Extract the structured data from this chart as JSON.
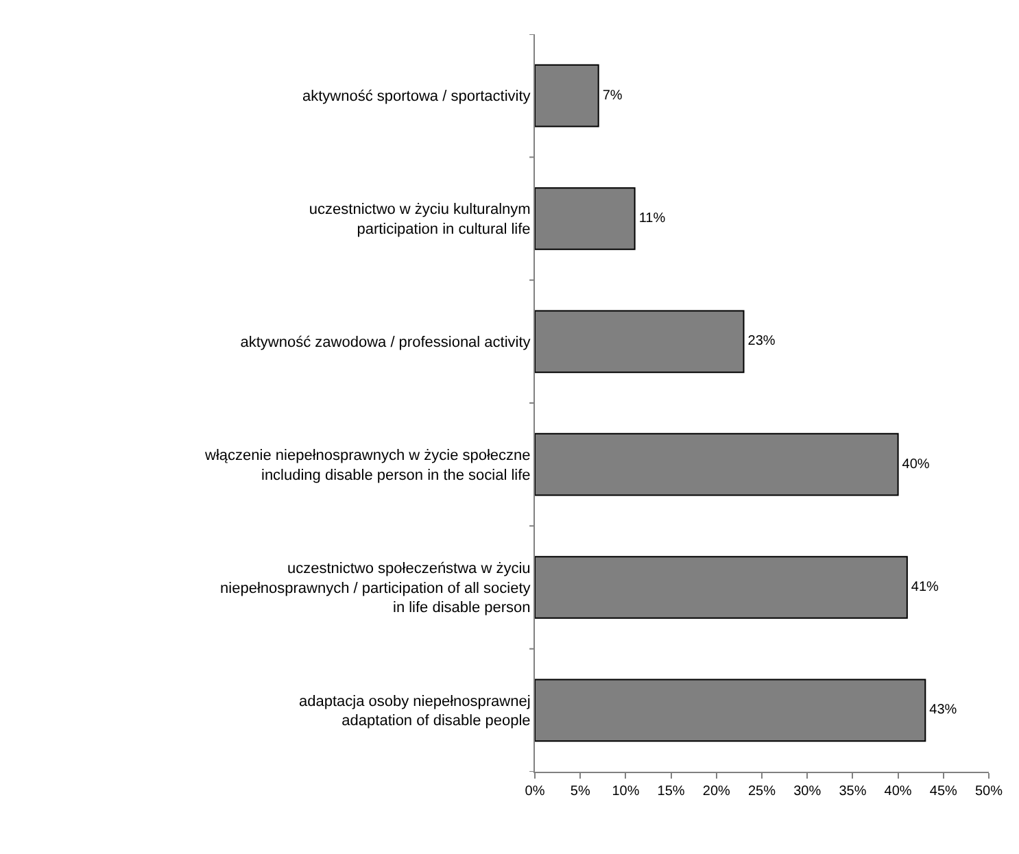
{
  "chart_data": {
    "type": "bar",
    "orientation": "horizontal",
    "categories": [
      "aktywność sportowa / sportactivity",
      "uczestnictwo w życiu kulturalnym\nparticipation in cultural life",
      "aktywność zawodowa / professional activity",
      "włączenie niepełnosprawnych w życie społeczne\nincluding disable person in the social life",
      "uczestnictwo społeczeństwa w życiu\nniepełnosprawnych / participation of all society\nin life disable person",
      "adaptacja osoby niepełnosprawnej\nadaptation of disable people"
    ],
    "values": [
      7,
      11,
      23,
      40,
      41,
      43
    ],
    "value_labels": [
      "7%",
      "11%",
      "23%",
      "40%",
      "41%",
      "43%"
    ],
    "color": "#808080",
    "xlim": [
      0,
      50
    ],
    "xticks": [
      {
        "value": 0,
        "label": "0%"
      },
      {
        "value": 5,
        "label": "5%"
      },
      {
        "value": 10,
        "label": "10%"
      },
      {
        "value": 15,
        "label": "15%"
      },
      {
        "value": 20,
        "label": "20%"
      },
      {
        "value": 25,
        "label": "25%"
      },
      {
        "value": 30,
        "label": "30%"
      },
      {
        "value": 35,
        "label": "35%"
      },
      {
        "value": 40,
        "label": "40%"
      },
      {
        "value": 45,
        "label": "45%"
      },
      {
        "value": 50,
        "label": "50%"
      }
    ],
    "tick_labels": "xy"
  }
}
